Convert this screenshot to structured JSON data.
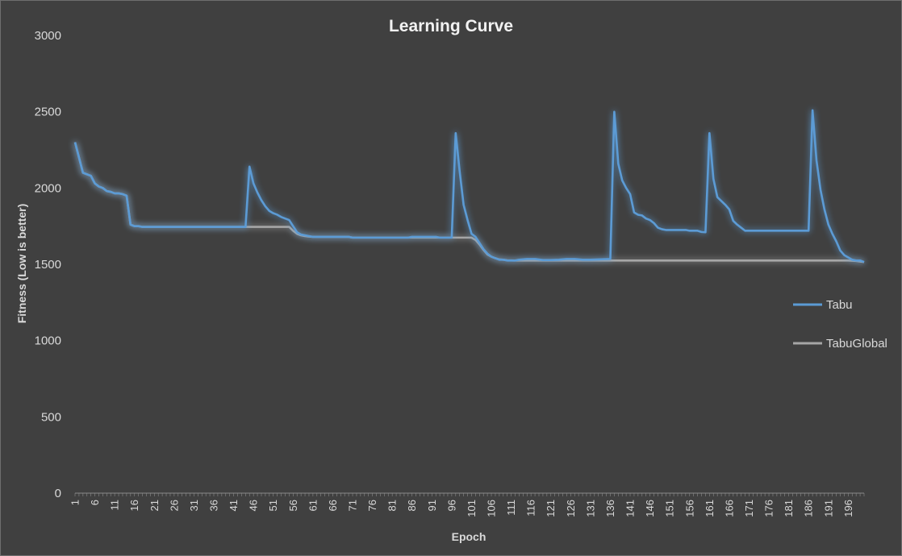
{
  "chart_data": {
    "type": "line",
    "title": "Learning Curve",
    "xlabel": "Epoch",
    "ylabel": "Fitness (Low is better)",
    "ylim": [
      0,
      3000
    ],
    "y_ticks": [
      0,
      500,
      1000,
      1500,
      2000,
      2500,
      3000
    ],
    "x_range": [
      1,
      200
    ],
    "x_tick_labels": [
      "1",
      "6",
      "11",
      "16",
      "21",
      "26",
      "31",
      "36",
      "41",
      "46",
      "51",
      "56",
      "61",
      "66",
      "71",
      "76",
      "81",
      "86",
      "91",
      "96",
      "101",
      "106",
      "111",
      "116",
      "121",
      "126",
      "131",
      "136",
      "141",
      "146",
      "151",
      "156",
      "161",
      "166",
      "171",
      "176",
      "181",
      "186",
      "191",
      "196"
    ],
    "grid": false,
    "legend_position": "right",
    "series": [
      {
        "name": "Tabu",
        "color": "#5b9bd5",
        "points": [
          [
            1,
            2300
          ],
          [
            2,
            2200
          ],
          [
            3,
            2100
          ],
          [
            4,
            2090
          ],
          [
            5,
            2080
          ],
          [
            6,
            2030
          ],
          [
            7,
            2010
          ],
          [
            8,
            2000
          ],
          [
            9,
            1980
          ],
          [
            10,
            1975
          ],
          [
            11,
            1965
          ],
          [
            12,
            1965
          ],
          [
            13,
            1960
          ],
          [
            14,
            1950
          ],
          [
            15,
            1760
          ],
          [
            16,
            1750
          ],
          [
            17,
            1750
          ],
          [
            18,
            1745
          ],
          [
            20,
            1745
          ],
          [
            44,
            1745
          ],
          [
            45,
            2140
          ],
          [
            46,
            2030
          ],
          [
            47,
            1970
          ],
          [
            48,
            1920
          ],
          [
            49,
            1880
          ],
          [
            50,
            1850
          ],
          [
            51,
            1835
          ],
          [
            52,
            1825
          ],
          [
            53,
            1810
          ],
          [
            54,
            1800
          ],
          [
            55,
            1790
          ],
          [
            56,
            1750
          ],
          [
            57,
            1710
          ],
          [
            58,
            1695
          ],
          [
            59,
            1690
          ],
          [
            60,
            1685
          ],
          [
            61,
            1680
          ],
          [
            70,
            1680
          ],
          [
            71,
            1675
          ],
          [
            85,
            1675
          ],
          [
            86,
            1680
          ],
          [
            92,
            1680
          ],
          [
            93,
            1675
          ],
          [
            96,
            1675
          ],
          [
            97,
            2360
          ],
          [
            98,
            2110
          ],
          [
            99,
            1890
          ],
          [
            100,
            1790
          ],
          [
            101,
            1700
          ],
          [
            102,
            1680
          ],
          [
            103,
            1640
          ],
          [
            104,
            1600
          ],
          [
            105,
            1570
          ],
          [
            106,
            1550
          ],
          [
            107,
            1540
          ],
          [
            108,
            1530
          ],
          [
            109,
            1530
          ],
          [
            110,
            1525
          ],
          [
            112,
            1525
          ],
          [
            113,
            1530
          ],
          [
            115,
            1535
          ],
          [
            117,
            1535
          ],
          [
            119,
            1528
          ],
          [
            121,
            1528
          ],
          [
            123,
            1530
          ],
          [
            125,
            1535
          ],
          [
            127,
            1535
          ],
          [
            129,
            1530
          ],
          [
            131,
            1530
          ],
          [
            133,
            1532
          ],
          [
            136,
            1535
          ],
          [
            137,
            2500
          ],
          [
            138,
            2160
          ],
          [
            139,
            2050
          ],
          [
            140,
            2000
          ],
          [
            141,
            1960
          ],
          [
            142,
            1840
          ],
          [
            143,
            1825
          ],
          [
            144,
            1820
          ],
          [
            145,
            1800
          ],
          [
            146,
            1790
          ],
          [
            147,
            1770
          ],
          [
            148,
            1740
          ],
          [
            149,
            1730
          ],
          [
            150,
            1725
          ],
          [
            155,
            1725
          ],
          [
            156,
            1720
          ],
          [
            158,
            1720
          ],
          [
            159,
            1712
          ],
          [
            160,
            1710
          ],
          [
            161,
            2360
          ],
          [
            162,
            2060
          ],
          [
            163,
            1940
          ],
          [
            164,
            1915
          ],
          [
            165,
            1890
          ],
          [
            166,
            1860
          ],
          [
            167,
            1785
          ],
          [
            168,
            1760
          ],
          [
            169,
            1740
          ],
          [
            170,
            1720
          ],
          [
            186,
            1720
          ],
          [
            187,
            2510
          ],
          [
            188,
            2180
          ],
          [
            189,
            1990
          ],
          [
            190,
            1860
          ],
          [
            191,
            1760
          ],
          [
            192,
            1700
          ],
          [
            193,
            1650
          ],
          [
            194,
            1590
          ],
          [
            195,
            1560
          ],
          [
            196,
            1545
          ],
          [
            197,
            1530
          ],
          [
            198,
            1525
          ],
          [
            199,
            1525
          ],
          [
            200,
            1515
          ]
        ]
      },
      {
        "name": "TabuGlobal",
        "color": "#a6a6a6",
        "points": [
          [
            1,
            2300
          ],
          [
            2,
            2200
          ],
          [
            3,
            2100
          ],
          [
            4,
            2090
          ],
          [
            5,
            2080
          ],
          [
            6,
            2030
          ],
          [
            7,
            2010
          ],
          [
            8,
            2000
          ],
          [
            9,
            1980
          ],
          [
            10,
            1975
          ],
          [
            11,
            1965
          ],
          [
            12,
            1965
          ],
          [
            13,
            1960
          ],
          [
            14,
            1950
          ],
          [
            15,
            1760
          ],
          [
            16,
            1750
          ],
          [
            17,
            1750
          ],
          [
            18,
            1745
          ],
          [
            54,
            1745
          ],
          [
            55,
            1745
          ],
          [
            56,
            1720
          ],
          [
            57,
            1700
          ],
          [
            58,
            1690
          ],
          [
            59,
            1685
          ],
          [
            60,
            1682
          ],
          [
            61,
            1680
          ],
          [
            70,
            1680
          ],
          [
            71,
            1675
          ],
          [
            101,
            1675
          ],
          [
            102,
            1660
          ],
          [
            103,
            1630
          ],
          [
            104,
            1595
          ],
          [
            105,
            1565
          ],
          [
            106,
            1550
          ],
          [
            107,
            1540
          ],
          [
            108,
            1532
          ],
          [
            109,
            1530
          ],
          [
            110,
            1526
          ],
          [
            112,
            1525
          ],
          [
            196,
            1525
          ],
          [
            198,
            1522
          ],
          [
            200,
            1515
          ]
        ]
      }
    ]
  }
}
